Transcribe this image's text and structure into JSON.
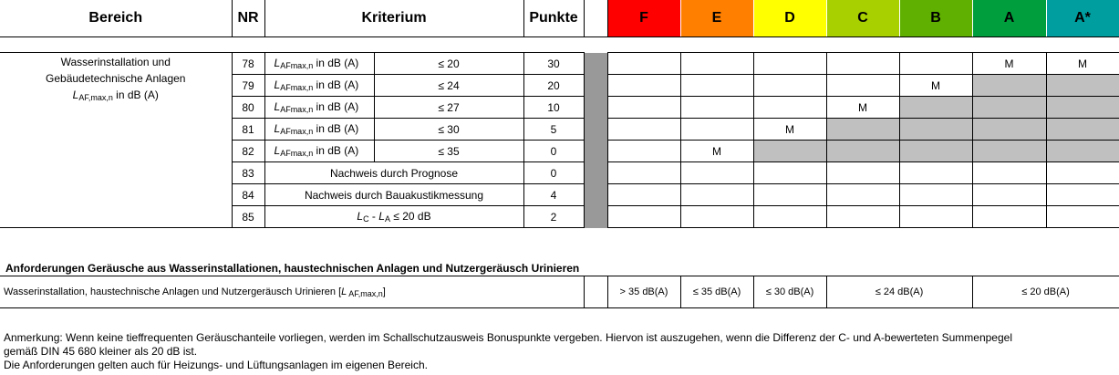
{
  "header": {
    "bereich": "Bereich",
    "nr": "NR",
    "kriterium": "Kriterium",
    "punkte": "Punkte",
    "grades": [
      {
        "label": "F",
        "color": "#ff0000"
      },
      {
        "label": "E",
        "color": "#ff7f00"
      },
      {
        "label": "D",
        "color": "#ffff00"
      },
      {
        "label": "C",
        "color": "#a8cf00"
      },
      {
        "label": "B",
        "color": "#5fb000"
      },
      {
        "label": "A",
        "color": "#009e3d"
      },
      {
        "label": "A*",
        "color": "#009e9e"
      }
    ]
  },
  "bereich": {
    "line1": "Wasserinstallation und",
    "line2": "Gebäudetechnische Anlagen",
    "symbol": "L",
    "symbol_sub": "AF,max,n",
    "unit": " in dB (A)"
  },
  "rows": [
    {
      "nr": "78",
      "crit_sym": "L",
      "crit_sub": "AFmax,n",
      "crit_unit": " in dB (A)",
      "limit": "≤ 20",
      "punkte": "30",
      "marks": [
        "",
        "",
        "",
        "",
        "",
        "M",
        "M"
      ],
      "shaded": [
        false,
        false,
        false,
        false,
        false,
        false,
        false
      ]
    },
    {
      "nr": "79",
      "crit_sym": "L",
      "crit_sub": "AFmax,n",
      "crit_unit": " in dB (A)",
      "limit": "≤ 24",
      "punkte": "20",
      "marks": [
        "",
        "",
        "",
        "",
        "M",
        "",
        ""
      ],
      "shaded": [
        false,
        false,
        false,
        false,
        false,
        true,
        true
      ]
    },
    {
      "nr": "80",
      "crit_sym": "L",
      "crit_sub": "AFmax,n",
      "crit_unit": " in dB (A)",
      "limit": "≤ 27",
      "punkte": "10",
      "marks": [
        "",
        "",
        "",
        "M",
        "",
        "",
        ""
      ],
      "shaded": [
        false,
        false,
        false,
        false,
        true,
        true,
        true
      ]
    },
    {
      "nr": "81",
      "crit_sym": "L",
      "crit_sub": "AFmax,n",
      "crit_unit": " in dB (A)",
      "limit": "≤ 30",
      "punkte": "5",
      "marks": [
        "",
        "",
        "M",
        "",
        "",
        "",
        ""
      ],
      "shaded": [
        false,
        false,
        false,
        true,
        true,
        true,
        true
      ]
    },
    {
      "nr": "82",
      "crit_sym": "L",
      "crit_sub": "AFmax,n",
      "crit_unit": " in dB (A)",
      "limit": "≤ 35",
      "punkte": "0",
      "marks": [
        "",
        "M",
        "",
        "",
        "",
        "",
        ""
      ],
      "shaded": [
        false,
        false,
        true,
        true,
        true,
        true,
        true
      ]
    }
  ],
  "rows_text": [
    {
      "nr": "83",
      "text": "Nachweis durch Prognose",
      "punkte": "0"
    },
    {
      "nr": "84",
      "text": "Nachweis durch Bauakustikmessung",
      "punkte": "4"
    }
  ],
  "row85": {
    "nr": "85",
    "lc": "L",
    "lc_sub": "C",
    "minus": " - ",
    "la": "L",
    "la_sub": "A",
    "rest": " ≤ 20 dB",
    "punkte": "2"
  },
  "section2": {
    "title": "Anforderungen Geräusche aus Wasserinstallationen, haustechnischen Anlagen und Nutzergeräusch Urinieren",
    "label": "Wasserinstallation, haustechnische Anlagen und Nutzergeräusch Urinieren [",
    "label_sym": "L",
    "label_sub": " AF,max,n",
    "label_end": "]",
    "values": [
      "> 35 dB(A)",
      "≤ 35 dB(A)",
      "≤ 30 dB(A)",
      "≤ 24 dB(A)",
      "≤ 20 dB(A)"
    ]
  },
  "note": {
    "line1": "Anmerkung: Wenn keine tieffrequenten Geräuschanteile vorliegen, werden im Schallschutzausweis Bonuspunkte vergeben. Hiervon ist auszugehen, wenn die Differenz der C- und A-bewerteten Summenpegel",
    "line2": "gemäß DIN 45 680 kleiner als 20 dB ist.",
    "line3": "Die Anforderungen gelten auch für Heizungs- und Lüftungsanlagen im eigenen Bereich."
  }
}
